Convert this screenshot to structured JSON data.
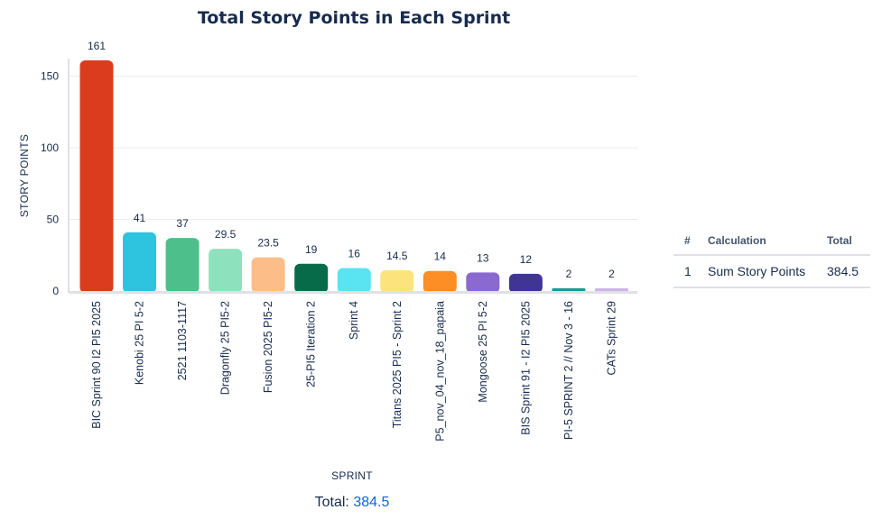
{
  "chart_data": {
    "type": "bar",
    "title": "Total Story Points in Each Sprint",
    "xlabel": "SPRINT",
    "ylabel": "STORY POINTS",
    "ylim": [
      0,
      161
    ],
    "yticks": [
      0,
      50,
      100,
      150
    ],
    "grid": true,
    "categories": [
      "BIC Sprint 90 I2 PI5 2025",
      "Kenobi 25 PI 5-2",
      "2521 1103-1117",
      "Dragonfly 25 PI5-2",
      "Fusion 2025 PI5-2",
      "25-PI5 Iteration 2",
      "Sprint 4",
      "Titans 2025 PI5 - Sprint 2",
      "P5_nov_04_nov_18_papaia",
      "Mongoose 25 PI 5-2",
      "BIS Sprint 91 - I2 PI5 2025",
      "PI-5 SPRINT 2 // Nov 3 - 16",
      "CATs Sprint 29"
    ],
    "values": [
      161,
      41,
      37,
      29.5,
      23.5,
      19,
      16,
      14.5,
      14,
      13,
      12,
      2,
      2
    ],
    "data_labels": [
      "161",
      "41",
      "37",
      "29.5",
      "23.5",
      "19",
      "16",
      "14.5",
      "14",
      "13",
      "12",
      "2",
      "2"
    ],
    "colors": [
      "#dc3c1e",
      "#2ec3de",
      "#4dbf8b",
      "#8de2bd",
      "#fdbd88",
      "#076b4a",
      "#5ae3f0",
      "#fde37c",
      "#fd8d25",
      "#8a6ad0",
      "#403596",
      "#1d9999",
      "#cfb5e7"
    ]
  },
  "summary": {
    "label": "Total:",
    "value": "384.5"
  },
  "calc_table": {
    "headers": [
      "#",
      "Calculation",
      "Total"
    ],
    "rows": [
      {
        "index": "1",
        "calculation": "Sum Story Points",
        "total": "384.5"
      }
    ]
  }
}
